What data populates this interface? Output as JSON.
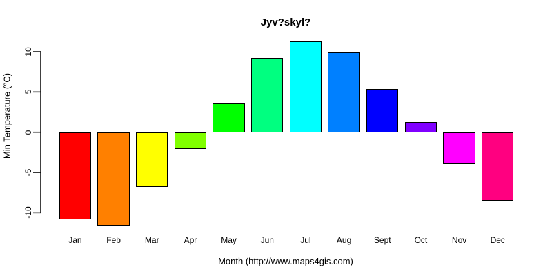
{
  "title": "Jyv?skyl?",
  "chart_data": {
    "type": "bar",
    "title": "Jyv?skyl?",
    "xlabel": "Month (http://www.maps4gis.com)",
    "ylabel": "Min Temperature (°C)",
    "categories": [
      "Jan",
      "Feb",
      "Mar",
      "Apr",
      "May",
      "Jun",
      "Jul",
      "Aug",
      "Sept",
      "Oct",
      "Nov",
      "Dec"
    ],
    "values": [
      -10.8,
      -11.6,
      -6.8,
      -2.1,
      3.6,
      9.2,
      11.3,
      9.9,
      5.4,
      1.3,
      -3.9,
      -8.5
    ],
    "bar_colors": [
      "#FF0000",
      "#FF8000",
      "#FFFF00",
      "#80FF00",
      "#00FF00",
      "#00FF80",
      "#00FFFF",
      "#0080FF",
      "#0000FF",
      "#8000FF",
      "#FF00FF",
      "#FF0080"
    ],
    "bar_border_color": "#000000",
    "yticks": [
      -10,
      -5,
      0,
      5,
      10
    ],
    "ytick_labels": [
      "-10",
      "-5",
      "0",
      "5",
      "10"
    ],
    "ylim": [
      -12.2,
      11.6
    ],
    "grid": false,
    "legend_position": "none",
    "axis_color": "#000000",
    "background_color": "#FFFFFF"
  }
}
